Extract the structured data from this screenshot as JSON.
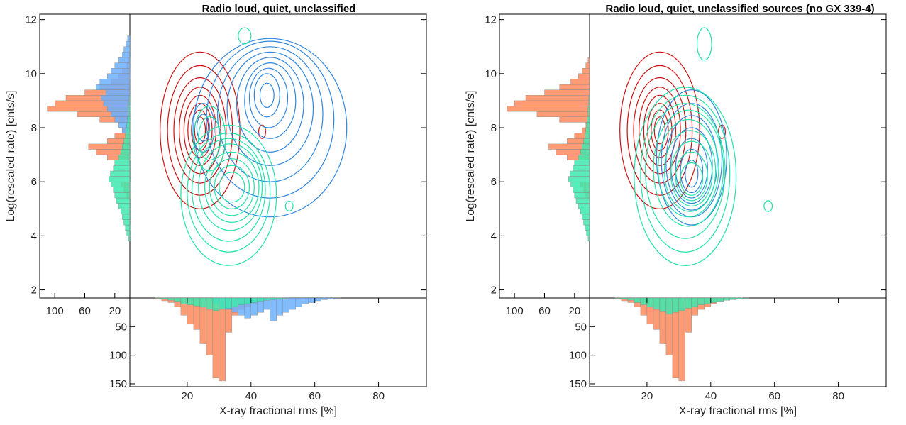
{
  "colors": {
    "radio_loud": "#cc1111",
    "radio_loud_hist": "#ff8a5c",
    "radio_quiet": "#2f86de",
    "radio_quiet_hist": "#6ab0ff",
    "unclassified": "#1fe3a8",
    "unclassified_hist": "#3ce9ae",
    "overlap_hist": "#6a7fd0"
  },
  "chart_data": [
    {
      "type": "contour",
      "title": "Radio loud, quiet, unclassified",
      "xlabel": "X-ray fractional rms [%]",
      "ylabel": "Log(rescaled rate) [cnts/s]",
      "xlim": [
        2,
        95
      ],
      "ylim": [
        1.7,
        12.2
      ],
      "xticks": [
        "20",
        "40",
        "60",
        "80"
      ],
      "yticks": [
        "2",
        "4",
        "6",
        "8",
        "10",
        "12"
      ],
      "side_hist_ticks": [
        "100",
        "60",
        "20"
      ],
      "bottom_hist_ticks": [
        "50",
        "100",
        "150"
      ],
      "series": [
        {
          "color_key": "radio_loud",
          "levels": [
            {
              "cx": 24,
              "cy": 7.9,
              "rx": 12.5,
              "ry": 2.9
            },
            {
              "cx": 24,
              "cy": 7.9,
              "rx": 10.2,
              "ry": 2.4
            },
            {
              "cx": 24,
              "cy": 7.9,
              "rx": 8.2,
              "ry": 1.95
            },
            {
              "cx": 24,
              "cy": 7.9,
              "rx": 6.5,
              "ry": 1.6
            },
            {
              "cx": 24,
              "cy": 7.9,
              "rx": 5,
              "ry": 1.3
            },
            {
              "cx": 24,
              "cy": 7.9,
              "rx": 3.8,
              "ry": 1.0
            },
            {
              "cx": 24,
              "cy": 7.9,
              "rx": 2.7,
              "ry": 0.75
            },
            {
              "cx": 24,
              "cy": 7.9,
              "rx": 1.7,
              "ry": 0.5
            },
            {
              "cx": 43.5,
              "cy": 7.85,
              "rx": 1.1,
              "ry": 0.25
            }
          ]
        },
        {
          "color_key": "radio_quiet",
          "levels": [
            {
              "cx": 46,
              "cy": 8.0,
              "rx": 24,
              "ry": 3.3
            },
            {
              "cx": 46,
              "cy": 8.3,
              "rx": 20,
              "ry": 2.9
            },
            {
              "cx": 46,
              "cy": 8.5,
              "rx": 16.5,
              "ry": 2.5
            },
            {
              "cx": 46,
              "cy": 8.7,
              "rx": 13.5,
              "ry": 2.1
            },
            {
              "cx": 46,
              "cy": 8.85,
              "rx": 10.5,
              "ry": 1.75
            },
            {
              "cx": 46,
              "cy": 9.0,
              "rx": 8,
              "ry": 1.4
            },
            {
              "cx": 45.5,
              "cy": 9.1,
              "rx": 6,
              "ry": 1.1
            },
            {
              "cx": 45,
              "cy": 9.2,
              "rx": 4,
              "ry": 0.8
            },
            {
              "cx": 45,
              "cy": 9.2,
              "rx": 2.2,
              "ry": 0.45
            },
            {
              "cx": 25,
              "cy": 8.0,
              "rx": 3.5,
              "ry": 0.9
            },
            {
              "cx": 25,
              "cy": 8.0,
              "rx": 2,
              "ry": 0.5
            }
          ]
        },
        {
          "color_key": "unclassified",
          "levels": [
            {
              "cx": 33,
              "cy": 5.5,
              "rx": 15,
              "ry": 2.6
            },
            {
              "cx": 33,
              "cy": 5.6,
              "rx": 13,
              "ry": 2.2
            },
            {
              "cx": 33,
              "cy": 5.7,
              "rx": 11.5,
              "ry": 1.9
            },
            {
              "cx": 33.5,
              "cy": 5.8,
              "rx": 10,
              "ry": 1.6
            },
            {
              "cx": 34,
              "cy": 5.8,
              "rx": 8.5,
              "ry": 1.3
            },
            {
              "cx": 34,
              "cy": 5.8,
              "rx": 7,
              "ry": 1.05
            },
            {
              "cx": 34,
              "cy": 5.8,
              "rx": 5.5,
              "ry": 0.8
            },
            {
              "cx": 34,
              "cy": 5.8,
              "rx": 4,
              "ry": 0.55
            },
            {
              "cx": 27,
              "cy": 7.6,
              "rx": 5,
              "ry": 1.2
            },
            {
              "cx": 27,
              "cy": 7.6,
              "rx": 3.5,
              "ry": 0.8
            },
            {
              "cx": 38,
              "cy": 11.4,
              "rx": 2,
              "ry": 0.3
            },
            {
              "cx": 52,
              "cy": 5.1,
              "rx": 1.2,
              "ry": 0.18
            }
          ]
        }
      ],
      "x_histogram": {
        "bin_start": 2,
        "bin_width": 2,
        "stacks": [
          {
            "color_key": "radio_loud_hist",
            "values": [
              0,
              0,
              0,
              0,
              2,
              5,
              8,
              15,
              30,
              45,
              55,
              80,
              100,
              140,
              145,
              60,
              30,
              20,
              15,
              10,
              5,
              3,
              2,
              1,
              0,
              0,
              0,
              0,
              0,
              0,
              0,
              0,
              0,
              0,
              0,
              0,
              0,
              0,
              0,
              0,
              0,
              0,
              0,
              0,
              0,
              0
            ]
          },
          {
            "color_key": "radio_quiet_hist",
            "values": [
              0,
              0,
              0,
              0,
              0,
              0,
              0,
              0,
              0,
              0,
              0,
              0,
              0,
              10,
              15,
              20,
              25,
              30,
              35,
              30,
              25,
              20,
              40,
              30,
              25,
              20,
              15,
              10,
              8,
              5,
              3,
              2,
              1,
              0,
              0,
              0,
              0,
              0,
              0,
              0,
              0,
              0,
              0,
              0,
              0,
              0
            ]
          },
          {
            "color_key": "unclassified_hist",
            "values": [
              0,
              0,
              0,
              0,
              1,
              2,
              4,
              6,
              10,
              12,
              14,
              16,
              20,
              22,
              20,
              18,
              15,
              12,
              10,
              8,
              6,
              4,
              3,
              2,
              1,
              0,
              0,
              0,
              0,
              0,
              0,
              0,
              0,
              0,
              0,
              0,
              0,
              0,
              0,
              0,
              0,
              0,
              0,
              0,
              0,
              0
            ]
          }
        ]
      },
      "y_histogram": {
        "bin_start": 2,
        "bin_width": 0.2,
        "stacks": [
          {
            "color_key": "radio_loud_hist",
            "values": [
              0,
              0,
              0,
              0,
              0,
              0,
              0,
              0,
              0,
              0,
              0,
              0,
              0,
              0,
              0,
              0,
              0,
              5,
              8,
              12,
              0,
              0,
              0,
              0,
              30,
              45,
              55,
              30,
              20,
              10,
              5,
              40,
              70,
              110,
              100,
              85,
              60,
              40,
              25,
              15,
              10,
              5,
              2,
              0,
              0,
              0,
              0,
              0,
              0,
              0,
              0,
              0,
              0
            ]
          },
          {
            "color_key": "radio_quiet_hist",
            "values": [
              0,
              0,
              0,
              0,
              0,
              0,
              0,
              0,
              0,
              0,
              0,
              0,
              0,
              0,
              0,
              0,
              0,
              0,
              0,
              0,
              0,
              0,
              0,
              0,
              0,
              0,
              0,
              0,
              0,
              10,
              15,
              20,
              25,
              30,
              35,
              38,
              32,
              45,
              40,
              30,
              25,
              20,
              15,
              10,
              8,
              5,
              3,
              0,
              0,
              0,
              0,
              0,
              0
            ]
          },
          {
            "color_key": "unclassified_hist",
            "values": [
              0,
              0,
              0,
              0,
              0,
              0,
              0,
              0,
              0,
              2,
              4,
              6,
              8,
              10,
              12,
              15,
              18,
              20,
              22,
              25,
              28,
              26,
              22,
              20,
              15,
              12,
              10,
              8,
              6,
              5,
              4,
              3,
              2,
              2,
              1,
              1,
              0,
              0,
              0,
              0,
              0,
              0,
              0,
              0,
              0,
              0,
              0,
              0,
              0,
              0,
              0,
              0,
              0
            ]
          }
        ]
      }
    },
    {
      "type": "contour",
      "title": "Radio loud, quiet, unclassified sources (no GX 339-4)",
      "xlabel": "X-ray fractional rms [%]",
      "ylabel": "Log(rescaled rate) [cnts/s]",
      "xlim": [
        2,
        95
      ],
      "ylim": [
        1.7,
        12.2
      ],
      "xticks": [
        "20",
        "40",
        "60",
        "80"
      ],
      "yticks": [
        "2",
        "4",
        "6",
        "8",
        "10",
        "12"
      ],
      "side_hist_ticks": [
        "100",
        "60",
        "20"
      ],
      "bottom_hist_ticks": [
        "50",
        "100",
        "150"
      ],
      "series": [
        {
          "color_key": "radio_loud",
          "levels": [
            {
              "cx": 24,
              "cy": 7.9,
              "rx": 12.5,
              "ry": 2.9
            },
            {
              "cx": 24,
              "cy": 7.9,
              "rx": 10.2,
              "ry": 2.4
            },
            {
              "cx": 24,
              "cy": 7.9,
              "rx": 8.2,
              "ry": 1.95
            },
            {
              "cx": 24,
              "cy": 7.9,
              "rx": 6.5,
              "ry": 1.6
            },
            {
              "cx": 24,
              "cy": 7.9,
              "rx": 5,
              "ry": 1.3
            },
            {
              "cx": 24,
              "cy": 7.9,
              "rx": 3.8,
              "ry": 1.0
            },
            {
              "cx": 24,
              "cy": 7.9,
              "rx": 2.7,
              "ry": 0.75
            },
            {
              "cx": 24,
              "cy": 7.9,
              "rx": 1.7,
              "ry": 0.5
            },
            {
              "cx": 43.5,
              "cy": 7.85,
              "rx": 1.1,
              "ry": 0.25
            }
          ]
        },
        {
          "color_key": "radio_quiet",
          "levels": [
            {
              "cx": 34,
              "cy": 6.9,
              "rx": 11,
              "ry": 2.5
            },
            {
              "cx": 34,
              "cy": 6.8,
              "rx": 9.5,
              "ry": 2.1
            },
            {
              "cx": 34,
              "cy": 6.7,
              "rx": 8,
              "ry": 1.75
            },
            {
              "cx": 34,
              "cy": 6.6,
              "rx": 6.5,
              "ry": 1.4
            },
            {
              "cx": 34,
              "cy": 6.5,
              "rx": 5,
              "ry": 1.1
            },
            {
              "cx": 34,
              "cy": 6.4,
              "rx": 3.5,
              "ry": 0.8
            },
            {
              "cx": 34,
              "cy": 6.3,
              "rx": 2,
              "ry": 0.5
            }
          ]
        },
        {
          "color_key": "unclassified",
          "levels": [
            {
              "cx": 32,
              "cy": 6.2,
              "rx": 16,
              "ry": 3.3
            },
            {
              "cx": 32,
              "cy": 6.3,
              "rx": 14,
              "ry": 2.9
            },
            {
              "cx": 32,
              "cy": 6.4,
              "rx": 12.5,
              "ry": 2.5
            },
            {
              "cx": 33,
              "cy": 6.5,
              "rx": 11,
              "ry": 2.15
            },
            {
              "cx": 33,
              "cy": 6.5,
              "rx": 9.5,
              "ry": 1.8
            },
            {
              "cx": 33.5,
              "cy": 6.4,
              "rx": 8,
              "ry": 1.5
            },
            {
              "cx": 34,
              "cy": 6.3,
              "rx": 6.5,
              "ry": 1.2
            },
            {
              "cx": 34,
              "cy": 6.2,
              "rx": 5,
              "ry": 0.9
            },
            {
              "cx": 34,
              "cy": 6.1,
              "rx": 3.5,
              "ry": 0.6
            },
            {
              "cx": 38,
              "cy": 11.1,
              "rx": 2.3,
              "ry": 0.6
            },
            {
              "cx": 58,
              "cy": 5.1,
              "rx": 1.3,
              "ry": 0.2
            }
          ]
        }
      ],
      "x_histogram": {
        "bin_start": 2,
        "bin_width": 2,
        "stacks": [
          {
            "color_key": "radio_loud_hist",
            "values": [
              0,
              0,
              0,
              0,
              2,
              5,
              8,
              15,
              30,
              45,
              55,
              80,
              100,
              140,
              145,
              60,
              30,
              20,
              15,
              10,
              5,
              3,
              2,
              1,
              0,
              0,
              0,
              0,
              0,
              0,
              0,
              0,
              0,
              0,
              0,
              0,
              0,
              0,
              0,
              0,
              0,
              0,
              0,
              0,
              0,
              0
            ]
          },
          {
            "color_key": "unclassified_hist",
            "values": [
              0,
              0,
              0,
              0,
              1,
              2,
              4,
              8,
              12,
              16,
              20,
              24,
              28,
              25,
              22,
              18,
              15,
              12,
              10,
              8,
              6,
              4,
              3,
              2,
              1,
              0,
              0,
              0,
              0,
              0,
              0,
              0,
              0,
              0,
              0,
              0,
              0,
              0,
              0,
              0,
              0,
              0,
              0,
              0,
              0,
              0
            ]
          }
        ]
      },
      "y_histogram": {
        "bin_start": 2,
        "bin_width": 0.2,
        "stacks": [
          {
            "color_key": "radio_loud_hist",
            "values": [
              0,
              0,
              0,
              0,
              0,
              0,
              0,
              0,
              0,
              0,
              0,
              0,
              0,
              0,
              0,
              0,
              0,
              5,
              8,
              12,
              0,
              0,
              0,
              0,
              30,
              45,
              55,
              30,
              20,
              10,
              5,
              40,
              70,
              110,
              100,
              85,
              60,
              40,
              25,
              15,
              10,
              5,
              2,
              0,
              0,
              0,
              0,
              0,
              0,
              0,
              0,
              0,
              0
            ]
          },
          {
            "color_key": "unclassified_hist",
            "values": [
              0,
              0,
              0,
              0,
              0,
              0,
              0,
              0,
              0,
              2,
              4,
              6,
              8,
              10,
              12,
              15,
              18,
              20,
              22,
              25,
              28,
              26,
              22,
              20,
              15,
              12,
              10,
              8,
              6,
              5,
              4,
              3,
              2,
              2,
              1,
              1,
              0,
              0,
              0,
              0,
              0,
              0,
              0,
              0,
              0,
              0,
              0,
              0,
              0,
              0,
              0,
              0,
              0
            ]
          }
        ]
      }
    }
  ]
}
